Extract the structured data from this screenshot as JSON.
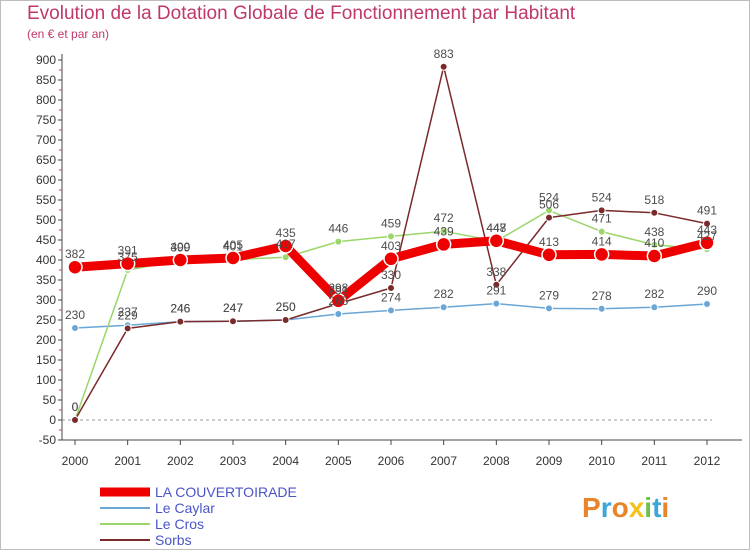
{
  "chart_data": {
    "type": "line",
    "title": "Evolution de la Dotation Globale de Fonctionnement par Habitant",
    "subtitle": "(en € et par an)",
    "xlabel": "",
    "ylabel": "",
    "ylim": [
      -50,
      900
    ],
    "ytick_step": 50,
    "grid": false,
    "legend_position": "bottom-left",
    "categories": [
      "2000",
      "2001",
      "2002",
      "2003",
      "2004",
      "2005",
      "2006",
      "2007",
      "2008",
      "2009",
      "2010",
      "2011",
      "2012"
    ],
    "series": [
      {
        "name": "LA COUVERTOIRADE",
        "color": "#ee0000",
        "values": [
          382,
          391,
          400,
          405,
          435,
          298,
          403,
          439,
          448,
          413,
          414,
          410,
          443
        ]
      },
      {
        "name": "Le Caylar",
        "color": "#6aa6d6",
        "values": [
          230,
          237,
          246,
          247,
          250,
          265,
          274,
          282,
          291,
          279,
          278,
          282,
          290
        ]
      },
      {
        "name": "Le Cros",
        "color": "#9ad66a",
        "values": [
          0,
          375,
          399,
          401,
          407,
          446,
          459,
          472,
          447,
          524,
          471,
          438,
          427
        ]
      },
      {
        "name": "Sorbs",
        "color": "#7a2a2a",
        "values": [
          0,
          229,
          246,
          247,
          250,
          291,
          330,
          883,
          338,
          506,
          524,
          518,
          491
        ]
      }
    ]
  },
  "brand": {
    "logo_text": "Proxiti",
    "logo_colors": [
      "#e8842a",
      "#3aa6d9",
      "#e8842a",
      "#f4c21a",
      "#6cc04a",
      "#3aa6d9",
      "#e8842a"
    ]
  }
}
